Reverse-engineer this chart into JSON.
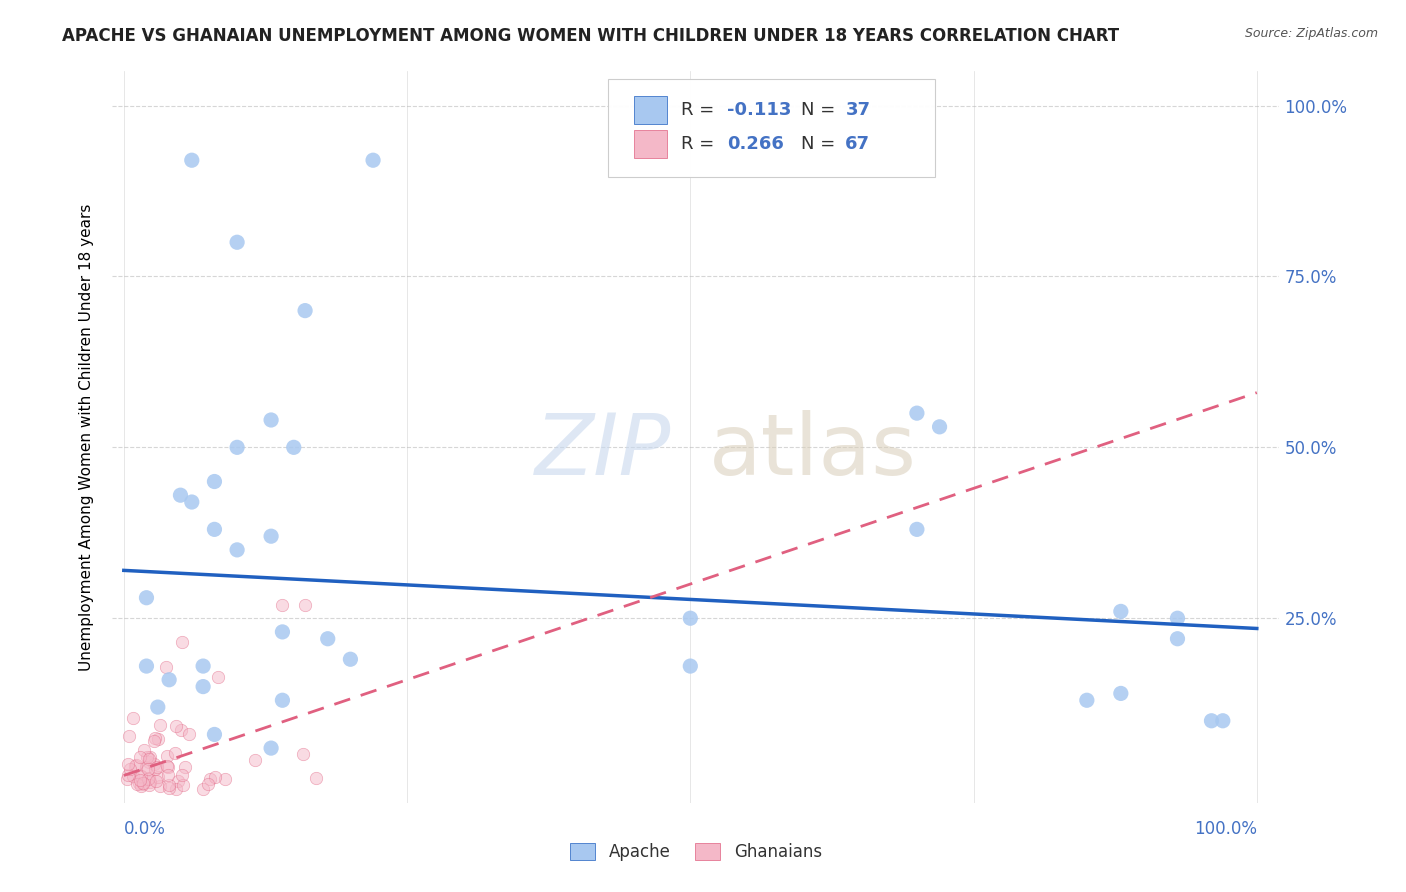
{
  "title": "APACHE VS GHANAIAN UNEMPLOYMENT AMONG WOMEN WITH CHILDREN UNDER 18 YEARS CORRELATION CHART",
  "source": "Source: ZipAtlas.com",
  "ylabel": "Unemployment Among Women with Children Under 18 years",
  "ytick_labels": [
    "100.0%",
    "75.0%",
    "50.0%",
    "25.0%"
  ],
  "ytick_positions": [
    1.0,
    0.75,
    0.5,
    0.25
  ],
  "apache_color": "#a8c8f0",
  "ghanaian_color": "#f4b8c8",
  "apache_line_color": "#2060c0",
  "ghanaian_line_color": "#e06080",
  "background_color": "#ffffff",
  "apache_points_x": [
    0.02,
    0.08,
    0.16,
    0.1,
    0.05,
    0.06,
    0.07,
    0.08,
    0.1,
    0.13,
    0.15,
    0.13,
    0.22,
    0.06,
    0.1,
    0.7,
    0.72,
    0.88,
    0.93,
    0.96,
    0.7,
    0.85,
    0.93,
    0.97,
    0.88,
    0.5,
    0.07,
    0.08,
    0.13,
    0.14,
    0.02,
    0.03,
    0.04,
    0.2,
    0.18,
    0.14,
    0.5
  ],
  "apache_points_y": [
    0.28,
    0.45,
    0.7,
    0.5,
    0.43,
    0.42,
    0.18,
    0.38,
    0.35,
    0.54,
    0.5,
    0.37,
    0.92,
    0.92,
    0.8,
    0.55,
    0.53,
    0.26,
    0.25,
    0.1,
    0.38,
    0.13,
    0.22,
    0.1,
    0.14,
    0.18,
    0.15,
    0.08,
    0.06,
    0.13,
    0.18,
    0.12,
    0.16,
    0.19,
    0.22,
    0.23,
    0.25
  ],
  "title_fontsize": 12,
  "axis_label_fontsize": 11,
  "tick_fontsize": 11,
  "legend_fontsize": 13
}
